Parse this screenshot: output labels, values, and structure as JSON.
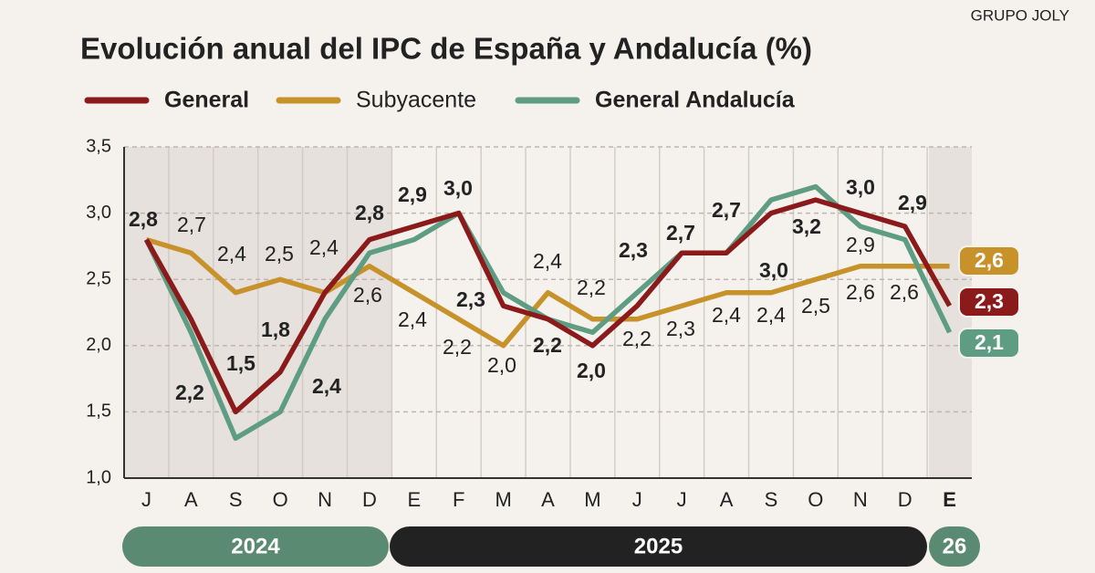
{
  "chart_data": {
    "type": "line",
    "title": "Evolución anual del IPC de España y Andalucía (%)",
    "source": "GRUPO JOLY",
    "categories": [
      "J",
      "A",
      "S",
      "O",
      "N",
      "D",
      "E",
      "F",
      "M",
      "A",
      "M",
      "J",
      "J",
      "A",
      "S",
      "O",
      "N",
      "D",
      "E"
    ],
    "period_labels": [
      "2024",
      "2025",
      "26"
    ],
    "ylim": [
      1,
      3.5
    ],
    "yticks": [
      {
        "value": 1,
        "label": "1,0"
      },
      {
        "value": 1.5,
        "label": "1,5"
      },
      {
        "value": 2,
        "label": "2,0"
      },
      {
        "value": 2.5,
        "label": "2,5"
      },
      {
        "value": 3,
        "label": "3,0"
      },
      {
        "value": 3.5,
        "label": "3,5"
      }
    ],
    "grid": true,
    "series": [
      {
        "name": "General",
        "color": "#8b1a1a",
        "values": [
          2.8,
          2.2,
          1.5,
          1.8,
          2.4,
          2.8,
          2.9,
          3.0,
          2.3,
          2.2,
          2.0,
          2.3,
          2.7,
          2.7,
          3.0,
          3.1,
          3.0,
          2.9,
          2.3
        ],
        "value_labels": [
          "2,8",
          "2,2",
          "1,5",
          "1,8",
          "2,4",
          "2,8",
          "2,9",
          "3,0",
          "2,3",
          "2,2",
          "2,0",
          "2,3",
          "2,7",
          "2,7",
          "3,0",
          null,
          "3,0",
          "2,9",
          "2,3"
        ]
      },
      {
        "name": "Subyacente",
        "color": "#c8922a",
        "values": [
          2.8,
          2.7,
          2.4,
          2.5,
          2.4,
          2.6,
          2.4,
          2.2,
          2.0,
          2.4,
          2.2,
          2.2,
          2.3,
          2.4,
          2.4,
          2.5,
          2.6,
          2.6,
          2.6
        ],
        "value_labels": [
          null,
          "2,7",
          "2,4",
          "2,5",
          "2,4",
          "2,6",
          "2,4",
          "2,2",
          "2,0",
          "2,4",
          "2,2",
          "2,2",
          "2,3",
          "2,4",
          "2,4",
          "2,5",
          "2,6",
          "2,6",
          "2,6"
        ]
      },
      {
        "name": "General Andalucía",
        "color": "#5e9c84",
        "values": [
          2.8,
          2.1,
          1.3,
          1.5,
          2.2,
          2.7,
          2.8,
          3.0,
          2.4,
          2.2,
          2.1,
          2.4,
          2.7,
          2.7,
          3.1,
          3.2,
          2.9,
          2.8,
          2.1
        ],
        "value_labels": [
          null,
          null,
          null,
          null,
          null,
          null,
          null,
          null,
          null,
          null,
          null,
          null,
          null,
          null,
          null,
          "3,2",
          "2,9",
          null,
          "2,1"
        ]
      }
    ]
  }
}
